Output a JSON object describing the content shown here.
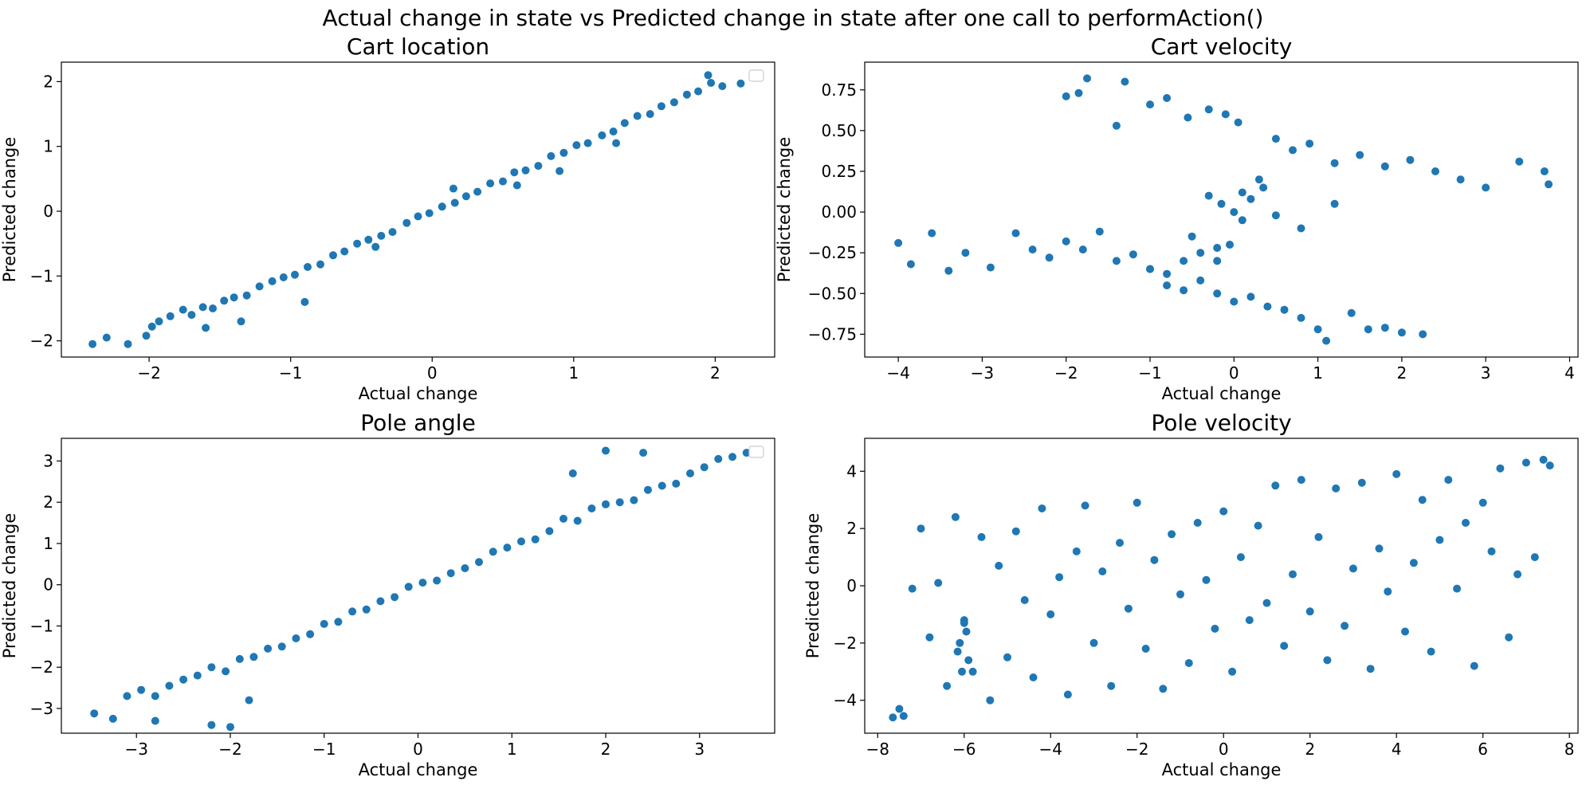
{
  "figure": {
    "suptitle": "Actual change in state vs Predicted change in state after one call to performAction()",
    "point_color": "#1f77b4"
  },
  "chart_data": [
    {
      "type": "scatter",
      "title": "Cart location",
      "xlabel": "Actual change",
      "ylabel": "Predicted change",
      "xlim": [
        -2.62,
        2.42
      ],
      "ylim": [
        -2.25,
        2.3
      ],
      "xticks": [
        -2,
        -1,
        0,
        1,
        2
      ],
      "yticks": [
        -2,
        -1,
        0,
        1,
        2
      ],
      "xtick_labels": [
        "−2",
        "−1",
        "0",
        "1",
        "2"
      ],
      "ytick_labels": [
        "−2",
        "−1",
        "0",
        "1",
        "2"
      ],
      "legend": "top-right (empty)",
      "trend": "near y = x; x from about -2.4 to 2.2",
      "x": [
        -2.4,
        -2.3,
        -2.15,
        -2.02,
        -1.98,
        -1.93,
        -1.85,
        -1.76,
        -1.7,
        -1.62,
        -1.55,
        -1.47,
        -1.4,
        -1.31,
        -1.22,
        -1.13,
        -1.05,
        -0.97,
        -0.88,
        -0.79,
        -0.7,
        -0.62,
        -0.53,
        -0.45,
        -0.36,
        -0.28,
        -0.18,
        -0.1,
        -0.02,
        0.07,
        0.16,
        0.24,
        0.32,
        0.41,
        0.5,
        0.58,
        0.66,
        0.75,
        0.84,
        0.93,
        1.02,
        1.1,
        1.2,
        1.28,
        1.36,
        1.45,
        1.54,
        1.62,
        1.71,
        1.8,
        1.88,
        1.97,
        2.05,
        2.18,
        -1.6,
        -1.35,
        -0.9,
        -0.4,
        0.15,
        0.6,
        0.9,
        1.3,
        1.95
      ],
      "y": [
        -2.05,
        -1.95,
        -2.05,
        -1.92,
        -1.78,
        -1.7,
        -1.62,
        -1.52,
        -1.6,
        -1.48,
        -1.5,
        -1.38,
        -1.33,
        -1.3,
        -1.16,
        -1.08,
        -1.02,
        -0.98,
        -0.86,
        -0.82,
        -0.68,
        -0.62,
        -0.5,
        -0.44,
        -0.38,
        -0.32,
        -0.18,
        -0.08,
        -0.03,
        0.07,
        0.13,
        0.23,
        0.3,
        0.43,
        0.46,
        0.6,
        0.63,
        0.7,
        0.85,
        0.9,
        1.02,
        1.05,
        1.17,
        1.23,
        1.36,
        1.47,
        1.5,
        1.62,
        1.68,
        1.8,
        1.85,
        1.98,
        1.93,
        1.97,
        -1.8,
        -1.7,
        -1.4,
        -0.55,
        0.35,
        0.4,
        0.62,
        1.05,
        2.1
      ]
    },
    {
      "type": "scatter",
      "title": "Cart velocity",
      "xlabel": "Actual change",
      "ylabel": "Predicted change",
      "xlim": [
        -4.4,
        4.1
      ],
      "ylim": [
        -0.89,
        0.92
      ],
      "xticks": [
        -4,
        -3,
        -2,
        -1,
        0,
        1,
        2,
        3,
        4
      ],
      "yticks": [
        -0.75,
        -0.5,
        -0.25,
        0.0,
        0.25,
        0.5,
        0.75
      ],
      "xtick_labels": [
        "−4",
        "−3",
        "−2",
        "−1",
        "0",
        "1",
        "2",
        "3",
        "4"
      ],
      "ytick_labels": [
        "−0.75",
        "−0.50",
        "−0.25",
        "0.00",
        "0.25",
        "0.50",
        "0.75"
      ],
      "trend": "X-shaped: central cluster near 0 with four arms",
      "x": [
        -4.0,
        -3.85,
        -3.6,
        -3.4,
        -3.2,
        -2.9,
        -2.6,
        -2.4,
        -2.2,
        -2.0,
        -1.8,
        -1.6,
        -1.4,
        -1.2,
        -1.0,
        -0.8,
        -0.6,
        -0.4,
        -0.2,
        -0.05,
        -2.0,
        -1.85,
        -1.75,
        -1.4,
        -1.3,
        -1.0,
        -0.8,
        -0.55,
        -0.3,
        -0.1,
        0.05,
        -1.0,
        -0.8,
        -0.6,
        -0.4,
        -0.2,
        0.0,
        0.2,
        0.4,
        0.6,
        0.8,
        1.0,
        1.1,
        1.4,
        1.6,
        1.8,
        2.0,
        2.25,
        0.1,
        0.3,
        0.5,
        0.7,
        0.9,
        1.2,
        1.5,
        1.8,
        2.1,
        2.4,
        2.7,
        3.0,
        3.4,
        3.7,
        3.75,
        -0.3,
        -0.15,
        0.0,
        0.1,
        0.2,
        0.35,
        0.5,
        0.8,
        1.2,
        -0.5,
        -0.2
      ],
      "y": [
        -0.19,
        -0.32,
        -0.13,
        -0.36,
        -0.25,
        -0.34,
        -0.13,
        -0.23,
        -0.28,
        -0.18,
        -0.23,
        -0.12,
        -0.3,
        -0.26,
        -0.35,
        -0.38,
        -0.3,
        -0.25,
        -0.22,
        -0.2,
        0.71,
        0.73,
        0.82,
        0.53,
        0.8,
        0.66,
        0.7,
        0.58,
        0.63,
        0.6,
        0.55,
        -0.35,
        -0.45,
        -0.48,
        -0.42,
        -0.5,
        -0.55,
        -0.52,
        -0.58,
        -0.6,
        -0.65,
        -0.72,
        -0.79,
        -0.62,
        -0.72,
        -0.71,
        -0.74,
        -0.75,
        0.12,
        0.2,
        0.45,
        0.38,
        0.42,
        0.3,
        0.35,
        0.28,
        0.32,
        0.25,
        0.2,
        0.15,
        0.31,
        0.25,
        0.17,
        0.1,
        0.05,
        0.0,
        -0.05,
        0.08,
        0.15,
        -0.02,
        -0.1,
        0.05,
        -0.15,
        -0.3
      ]
    },
    {
      "type": "scatter",
      "title": "Pole angle",
      "xlabel": "Actual change",
      "ylabel": "Predicted change",
      "xlim": [
        -3.8,
        3.8
      ],
      "ylim": [
        -3.6,
        3.55
      ],
      "xticks": [
        -3,
        -2,
        -1,
        0,
        1,
        2,
        3
      ],
      "yticks": [
        -3,
        -2,
        -1,
        0,
        1,
        2,
        3
      ],
      "xtick_labels": [
        "−3",
        "−2",
        "−1",
        "0",
        "1",
        "2",
        "3"
      ],
      "ytick_labels": [
        "−3",
        "−2",
        "−1",
        "0",
        "1",
        "2",
        "3"
      ],
      "legend": "top-right (empty)",
      "trend": "near y = x; x from about -3.5 to 3.5",
      "x": [
        -3.45,
        -3.25,
        -3.1,
        -2.95,
        -2.8,
        -2.65,
        -2.5,
        -2.35,
        -2.2,
        -2.05,
        -1.9,
        -1.75,
        -1.6,
        -1.45,
        -1.3,
        -1.15,
        -1.0,
        -0.85,
        -0.7,
        -0.55,
        -0.4,
        -0.25,
        -0.1,
        0.05,
        0.2,
        0.35,
        0.5,
        0.65,
        0.8,
        0.95,
        1.1,
        1.25,
        1.4,
        1.55,
        1.7,
        1.85,
        2.0,
        2.15,
        2.3,
        2.45,
        2.6,
        2.75,
        2.9,
        3.05,
        3.2,
        3.35,
        3.5,
        -2.8,
        -2.2,
        -2.0,
        -1.8,
        1.65,
        2.0,
        2.4
      ],
      "y": [
        -3.12,
        -3.25,
        -2.7,
        -2.55,
        -2.7,
        -2.45,
        -2.3,
        -2.2,
        -2.0,
        -2.1,
        -1.8,
        -1.75,
        -1.55,
        -1.5,
        -1.3,
        -1.2,
        -0.95,
        -0.9,
        -0.65,
        -0.6,
        -0.4,
        -0.3,
        -0.05,
        0.05,
        0.1,
        0.28,
        0.4,
        0.55,
        0.8,
        0.9,
        1.05,
        1.1,
        1.3,
        1.6,
        1.55,
        1.85,
        1.95,
        2.0,
        2.05,
        2.3,
        2.4,
        2.45,
        2.7,
        2.85,
        3.05,
        3.1,
        3.2,
        -3.3,
        -3.4,
        -3.45,
        -2.8,
        2.7,
        3.25,
        3.2
      ]
    },
    {
      "type": "scatter",
      "title": "Pole velocity",
      "xlabel": "Actual change",
      "ylabel": "Predicted change",
      "xlim": [
        -8.3,
        8.2
      ],
      "ylim": [
        -5.15,
        5.15
      ],
      "xticks": [
        -8,
        -6,
        -4,
        -2,
        0,
        2,
        4,
        6,
        8
      ],
      "yticks": [
        -4,
        -2,
        0,
        2,
        4
      ],
      "xtick_labels": [
        "−8",
        "−6",
        "−4",
        "−2",
        "0",
        "2",
        "4",
        "6",
        "8"
      ],
      "ytick_labels": [
        "−4",
        "−2",
        "0",
        "2",
        "4"
      ],
      "trend": "widely scattered with weak positive correlation",
      "x": [
        -7.65,
        -7.5,
        -7.4,
        -7.2,
        -7.0,
        -6.8,
        -6.6,
        -6.4,
        -6.2,
        -6.0,
        -5.8,
        -5.6,
        -5.4,
        -5.2,
        -5.0,
        -4.8,
        -4.6,
        -4.4,
        -4.2,
        -4.0,
        -3.8,
        -3.6,
        -3.4,
        -3.2,
        -3.0,
        -2.8,
        -2.6,
        -2.4,
        -2.2,
        -2.0,
        -1.8,
        -1.6,
        -1.4,
        -1.2,
        -1.0,
        -0.8,
        -0.6,
        -0.4,
        -0.2,
        0.0,
        0.2,
        0.4,
        0.6,
        0.8,
        1.0,
        1.2,
        1.4,
        1.6,
        1.8,
        2.0,
        2.2,
        2.4,
        2.6,
        2.8,
        3.0,
        3.2,
        3.4,
        3.6,
        3.8,
        4.0,
        4.2,
        4.4,
        4.6,
        4.8,
        5.0,
        5.2,
        5.4,
        5.6,
        5.8,
        6.0,
        6.2,
        6.4,
        6.6,
        6.8,
        7.0,
        7.2,
        7.4,
        7.55,
        -6.0,
        -6.1,
        -5.9,
        -6.05,
        -5.95,
        -6.15
      ],
      "y": [
        -4.6,
        -4.3,
        -4.55,
        -0.1,
        2.0,
        -1.8,
        0.1,
        -3.5,
        2.4,
        -1.2,
        -3.0,
        1.7,
        -4.0,
        0.7,
        -2.5,
        1.9,
        -0.5,
        -3.2,
        2.7,
        -1.0,
        0.3,
        -3.8,
        1.2,
        2.8,
        -2.0,
        0.5,
        -3.5,
        1.5,
        -0.8,
        2.9,
        -2.2,
        0.9,
        -3.6,
        1.8,
        -0.3,
        -2.7,
        2.2,
        0.2,
        -1.5,
        2.6,
        -3.0,
        1.0,
        -1.2,
        2.1,
        -0.6,
        3.5,
        -2.1,
        0.4,
        3.7,
        -0.9,
        1.7,
        -2.6,
        3.4,
        -1.4,
        0.6,
        3.6,
        -2.9,
        1.3,
        -0.2,
        3.9,
        -1.6,
        0.8,
        3.0,
        -2.3,
        1.6,
        3.7,
        -0.1,
        2.2,
        -2.8,
        2.9,
        1.2,
        4.1,
        -1.8,
        0.4,
        4.3,
        1.0,
        4.4,
        4.2,
        -1.3,
        -2.0,
        -2.6,
        -3.0,
        -1.6,
        -2.3
      ]
    }
  ]
}
